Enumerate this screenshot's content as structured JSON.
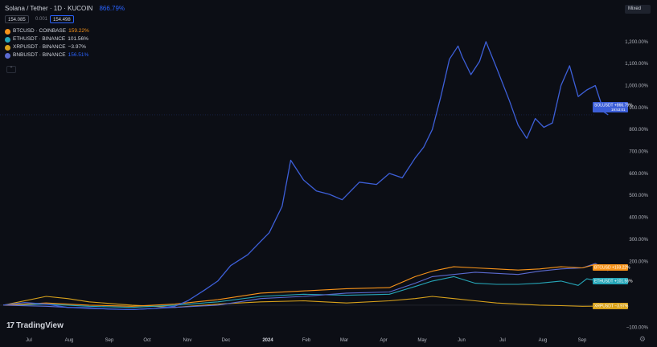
{
  "header": {
    "title": "Solana / Tether · 1D · KUCOIN",
    "main_pct": "866.79%",
    "price_left": "154.085",
    "spread": "0.001",
    "price_right": "154.498"
  },
  "scale_button": "Mixed",
  "collapse_icon": "chevron-up-icon",
  "brand": "TradingView",
  "colors": {
    "background": "#0c0e15",
    "sol": "#3d5fd8",
    "btc": "#f7931a",
    "eth": "#26a6b8",
    "xrp": "#d9a21b",
    "bnb": "#5b6ad0"
  },
  "legend": [
    {
      "symbol": "BTCUSD · COINBASE",
      "value": "159.22%",
      "color": "#f7931a"
    },
    {
      "symbol": "ETHUSDT · BINANCE",
      "value": "101.56%",
      "color": "#d1d4dc"
    },
    {
      "symbol": "XRPUSDT · BINANCE",
      "value": "−3.97%",
      "color": "#d1d4dc"
    },
    {
      "symbol": "BNBUSDT · BINANCE",
      "value": "156.51%",
      "color": "#2962ff"
    }
  ],
  "chart_data": {
    "type": "line",
    "x_ticks": [
      "Jul",
      "Aug",
      "Sep",
      "Oct",
      "Nov",
      "Dec",
      "2024",
      "Feb",
      "Mar",
      "Apr",
      "May",
      "Jun",
      "Jul",
      "Aug",
      "Sep"
    ],
    "y_ticks": [
      {
        "v": 1200,
        "label": "1,200.00%"
      },
      {
        "v": 1100,
        "label": "1,100.00%"
      },
      {
        "v": 1000,
        "label": "1,000.00%"
      },
      {
        "v": 900,
        "label": "900.00%"
      },
      {
        "v": 800,
        "label": "800.00%"
      },
      {
        "v": 700,
        "label": "700.00%"
      },
      {
        "v": 600,
        "label": "600.00%"
      },
      {
        "v": 500,
        "label": "500.00%"
      },
      {
        "v": 400,
        "label": "400.00%"
      },
      {
        "v": 300,
        "label": "300.00%"
      },
      {
        "v": 200,
        "label": "200.00%"
      },
      {
        "v": -100,
        "label": "−100.00%"
      }
    ],
    "ylim": [
      -110,
      1280
    ],
    "xlim": [
      0,
      13.7
    ],
    "grid": false,
    "series": [
      {
        "name": "SOLUSDT",
        "color": "#3d5fd8",
        "label": "SOLUSDT",
        "label_value": "+866.79%",
        "label_value2": "19:53:01",
        "last": 866.79,
        "points": [
          [
            0,
            0
          ],
          [
            0.5,
            12
          ],
          [
            1,
            5
          ],
          [
            1.5,
            -10
          ],
          [
            2,
            -12
          ],
          [
            2.5,
            -18
          ],
          [
            3,
            -20
          ],
          [
            3.5,
            -15
          ],
          [
            4,
            -5
          ],
          [
            4.3,
            20
          ],
          [
            4.7,
            70
          ],
          [
            5,
            110
          ],
          [
            5.3,
            180
          ],
          [
            5.7,
            230
          ],
          [
            6,
            290
          ],
          [
            6.2,
            330
          ],
          [
            6.5,
            450
          ],
          [
            6.7,
            660
          ],
          [
            7,
            570
          ],
          [
            7.3,
            520
          ],
          [
            7.6,
            505
          ],
          [
            7.9,
            480
          ],
          [
            8.3,
            560
          ],
          [
            8.7,
            550
          ],
          [
            9,
            600
          ],
          [
            9.3,
            580
          ],
          [
            9.6,
            670
          ],
          [
            9.8,
            720
          ],
          [
            10,
            800
          ],
          [
            10.2,
            950
          ],
          [
            10.4,
            1120
          ],
          [
            10.6,
            1180
          ],
          [
            10.7,
            1130
          ],
          [
            10.9,
            1050
          ],
          [
            11.1,
            1110
          ],
          [
            11.25,
            1200
          ],
          [
            11.5,
            1080
          ],
          [
            11.8,
            930
          ],
          [
            12,
            820
          ],
          [
            12.2,
            760
          ],
          [
            12.4,
            850
          ],
          [
            12.6,
            810
          ],
          [
            12.8,
            830
          ],
          [
            13,
            1000
          ],
          [
            13.2,
            1090
          ],
          [
            13.4,
            950
          ],
          [
            13.6,
            980
          ],
          [
            13.8,
            1000
          ],
          [
            14,
            880
          ],
          [
            14.1,
            866.79
          ]
        ]
      },
      {
        "name": "BTCUSD",
        "color": "#f7931a",
        "label": "BTCUSD",
        "label_value": "+159.22%",
        "last": 159.22,
        "points": [
          [
            0,
            0
          ],
          [
            1,
            10
          ],
          [
            2,
            0
          ],
          [
            3,
            -5
          ],
          [
            4,
            5
          ],
          [
            5,
            25
          ],
          [
            6,
            55
          ],
          [
            7,
            65
          ],
          [
            8,
            75
          ],
          [
            9,
            80
          ],
          [
            9.6,
            130
          ],
          [
            10,
            155
          ],
          [
            10.5,
            175
          ],
          [
            11,
            170
          ],
          [
            11.5,
            165
          ],
          [
            12,
            160
          ],
          [
            12.5,
            165
          ],
          [
            13,
            175
          ],
          [
            13.5,
            170
          ],
          [
            13.8,
            185
          ],
          [
            14.1,
            159.22
          ]
        ]
      },
      {
        "name": "BNBUSDT",
        "color": "#5b6ad0",
        "label": "BNBUSDT",
        "label_value": "+156.51%",
        "last": 156.51,
        "points": [
          [
            0,
            0
          ],
          [
            1,
            -5
          ],
          [
            2,
            -15
          ],
          [
            3,
            -20
          ],
          [
            4,
            -10
          ],
          [
            5,
            0
          ],
          [
            6,
            30
          ],
          [
            7,
            40
          ],
          [
            8,
            55
          ],
          [
            9,
            60
          ],
          [
            9.6,
            100
          ],
          [
            10,
            130
          ],
          [
            10.5,
            140
          ],
          [
            11,
            150
          ],
          [
            11.5,
            145
          ],
          [
            12,
            140
          ],
          [
            12.5,
            155
          ],
          [
            13,
            165
          ],
          [
            13.5,
            170
          ],
          [
            13.8,
            190
          ],
          [
            14.1,
            156.51
          ]
        ]
      },
      {
        "name": "ETHUSDT",
        "color": "#26a6b8",
        "label": "ETHUSDT",
        "label_value": "+101.56%",
        "last": 101.56,
        "points": [
          [
            0,
            0
          ],
          [
            1,
            5
          ],
          [
            2,
            -5
          ],
          [
            3,
            -10
          ],
          [
            4,
            0
          ],
          [
            5,
            15
          ],
          [
            6,
            40
          ],
          [
            7,
            50
          ],
          [
            8,
            45
          ],
          [
            9,
            50
          ],
          [
            9.6,
            85
          ],
          [
            10,
            110
          ],
          [
            10.5,
            130
          ],
          [
            11,
            100
          ],
          [
            11.5,
            95
          ],
          [
            12,
            95
          ],
          [
            12.5,
            100
          ],
          [
            13,
            110
          ],
          [
            13.4,
            90
          ],
          [
            13.6,
            120
          ],
          [
            14.1,
            101.56
          ]
        ]
      },
      {
        "name": "XRPUSDT",
        "color": "#d9a21b",
        "label": "XRPUSDT",
        "label_value": "−3.97%",
        "last": -3.97,
        "points": [
          [
            0,
            0
          ],
          [
            1,
            40
          ],
          [
            1.5,
            30
          ],
          [
            2,
            15
          ],
          [
            3,
            0
          ],
          [
            4,
            -10
          ],
          [
            5,
            5
          ],
          [
            6,
            15
          ],
          [
            7,
            20
          ],
          [
            8,
            10
          ],
          [
            9,
            20
          ],
          [
            9.6,
            30
          ],
          [
            10,
            40
          ],
          [
            10.5,
            30
          ],
          [
            11,
            20
          ],
          [
            11.5,
            10
          ],
          [
            12,
            5
          ],
          [
            12.5,
            0
          ],
          [
            13,
            -2
          ],
          [
            13.5,
            -5
          ],
          [
            14.1,
            -3.97
          ]
        ]
      }
    ]
  }
}
